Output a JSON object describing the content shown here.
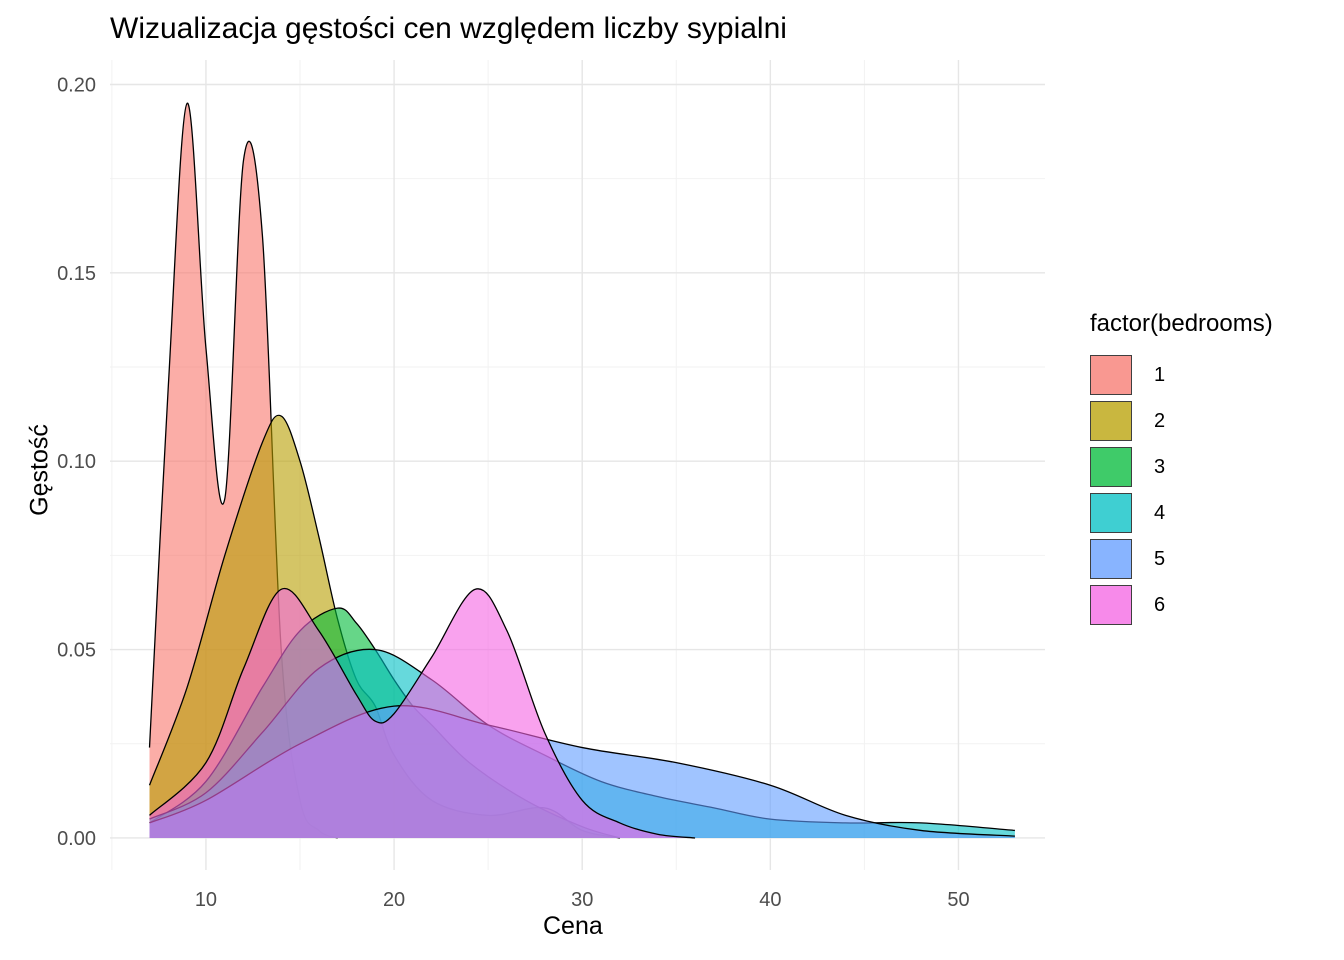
{
  "chart_data": {
    "type": "area",
    "title": "Wizualizacja gęstości cen względem liczby sypialni",
    "xlabel": "Cena",
    "ylabel": "Gęstość",
    "xlim": [
      4.9,
      54.6
    ],
    "ylim": [
      -0.0085,
      0.2065
    ],
    "x_ticks": [
      10,
      20,
      30,
      40,
      50
    ],
    "x_tick_labels": [
      "10",
      "20",
      "30",
      "40",
      "50"
    ],
    "y_ticks": [
      0.0,
      0.05,
      0.1,
      0.15,
      0.2
    ],
    "y_tick_labels": [
      "0.00",
      "0.05",
      "0.10",
      "0.15",
      "0.20"
    ],
    "grid": true,
    "legend": {
      "title": "factor(bedrooms)",
      "position": "right"
    },
    "series": [
      {
        "name": "1",
        "color": "#F8766D",
        "x": [
          7,
          8,
          9,
          10,
          11,
          12,
          13,
          14,
          15,
          16,
          17
        ],
        "y": [
          0.024,
          0.12,
          0.195,
          0.13,
          0.09,
          0.18,
          0.16,
          0.05,
          0.01,
          0.002,
          0
        ]
      },
      {
        "name": "2",
        "color": "#B79F00",
        "x": [
          7,
          9,
          11,
          13,
          14,
          15,
          16,
          17,
          18,
          19,
          20,
          22,
          25,
          28,
          30,
          32
        ],
        "y": [
          0.014,
          0.04,
          0.075,
          0.105,
          0.112,
          0.1,
          0.08,
          0.058,
          0.042,
          0.035,
          0.022,
          0.01,
          0.006,
          0.008,
          0.002,
          0
        ]
      },
      {
        "name": "3",
        "color": "#00BA38",
        "x": [
          7,
          10,
          13,
          15,
          17,
          18,
          19,
          20,
          21,
          22,
          24,
          27,
          30,
          32
        ],
        "y": [
          0.004,
          0.015,
          0.04,
          0.055,
          0.061,
          0.057,
          0.05,
          0.042,
          0.035,
          0.03,
          0.02,
          0.01,
          0.003,
          0
        ]
      },
      {
        "name": "4",
        "color": "#00BFC4",
        "x": [
          7,
          10,
          13,
          16,
          19,
          22,
          25,
          28,
          31,
          34,
          37,
          40,
          44,
          48,
          53
        ],
        "y": [
          0.005,
          0.012,
          0.028,
          0.045,
          0.05,
          0.042,
          0.03,
          0.022,
          0.015,
          0.011,
          0.008,
          0.005,
          0.004,
          0.004,
          0.002
        ]
      },
      {
        "name": "5",
        "color": "#619CFF",
        "x": [
          7,
          10,
          15,
          20,
          25,
          30,
          35,
          40,
          44,
          48,
          53
        ],
        "y": [
          0.004,
          0.01,
          0.025,
          0.035,
          0.03,
          0.024,
          0.02,
          0.014,
          0.006,
          0.002,
          0.0005
        ]
      },
      {
        "name": "6",
        "color": "#F564E3",
        "x": [
          7,
          10,
          12,
          14,
          16,
          18,
          19,
          20,
          22,
          24.3,
          26,
          28,
          30,
          32,
          34,
          36
        ],
        "y": [
          0.006,
          0.02,
          0.045,
          0.066,
          0.055,
          0.038,
          0.031,
          0.033,
          0.048,
          0.066,
          0.055,
          0.028,
          0.01,
          0.004,
          0.001,
          0
        ]
      }
    ]
  }
}
